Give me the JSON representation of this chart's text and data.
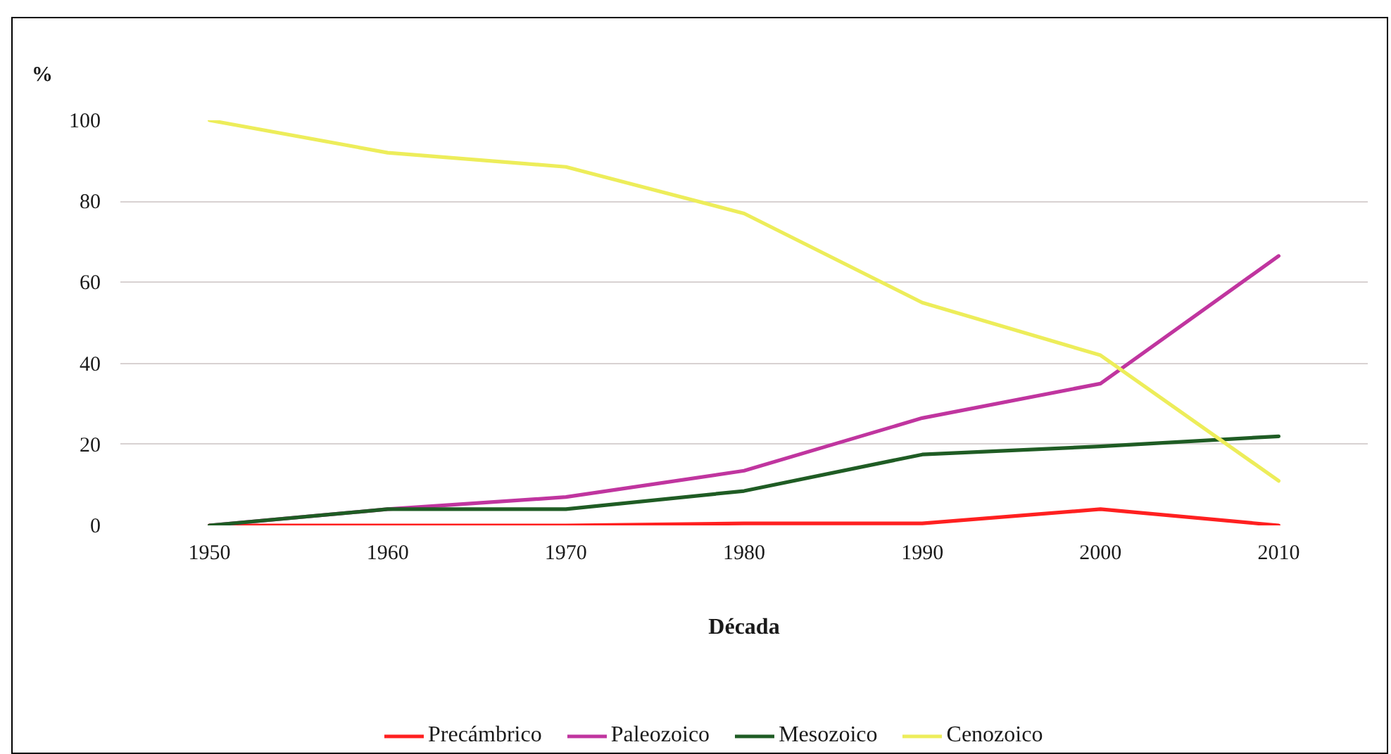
{
  "chart_data": {
    "type": "line",
    "xlabel": "Década",
    "ylabel": "%",
    "categories": [
      "1950",
      "1960",
      "1970",
      "1980",
      "1990",
      "2000",
      "2010"
    ],
    "series": [
      {
        "name": "Precámbrico",
        "color": "#ff2020",
        "values": [
          0,
          0,
          0,
          0.5,
          0.5,
          4,
          0
        ]
      },
      {
        "name": "Paleozoico",
        "color": "#c0359f",
        "values": [
          0,
          4,
          7,
          13.5,
          26.5,
          35,
          66.5
        ]
      },
      {
        "name": "Mesozoico",
        "color": "#1f5c24",
        "values": [
          0,
          4,
          4,
          8.5,
          17.5,
          19.5,
          22
        ]
      },
      {
        "name": "Cenozoico",
        "color": "#eded5a",
        "values": [
          100,
          92,
          88.5,
          77,
          55,
          42,
          11
        ]
      }
    ],
    "ylim": [
      0,
      100
    ],
    "yticks": [
      0,
      20,
      40,
      60,
      80,
      100
    ],
    "grid": "y",
    "legend": "bottom"
  }
}
